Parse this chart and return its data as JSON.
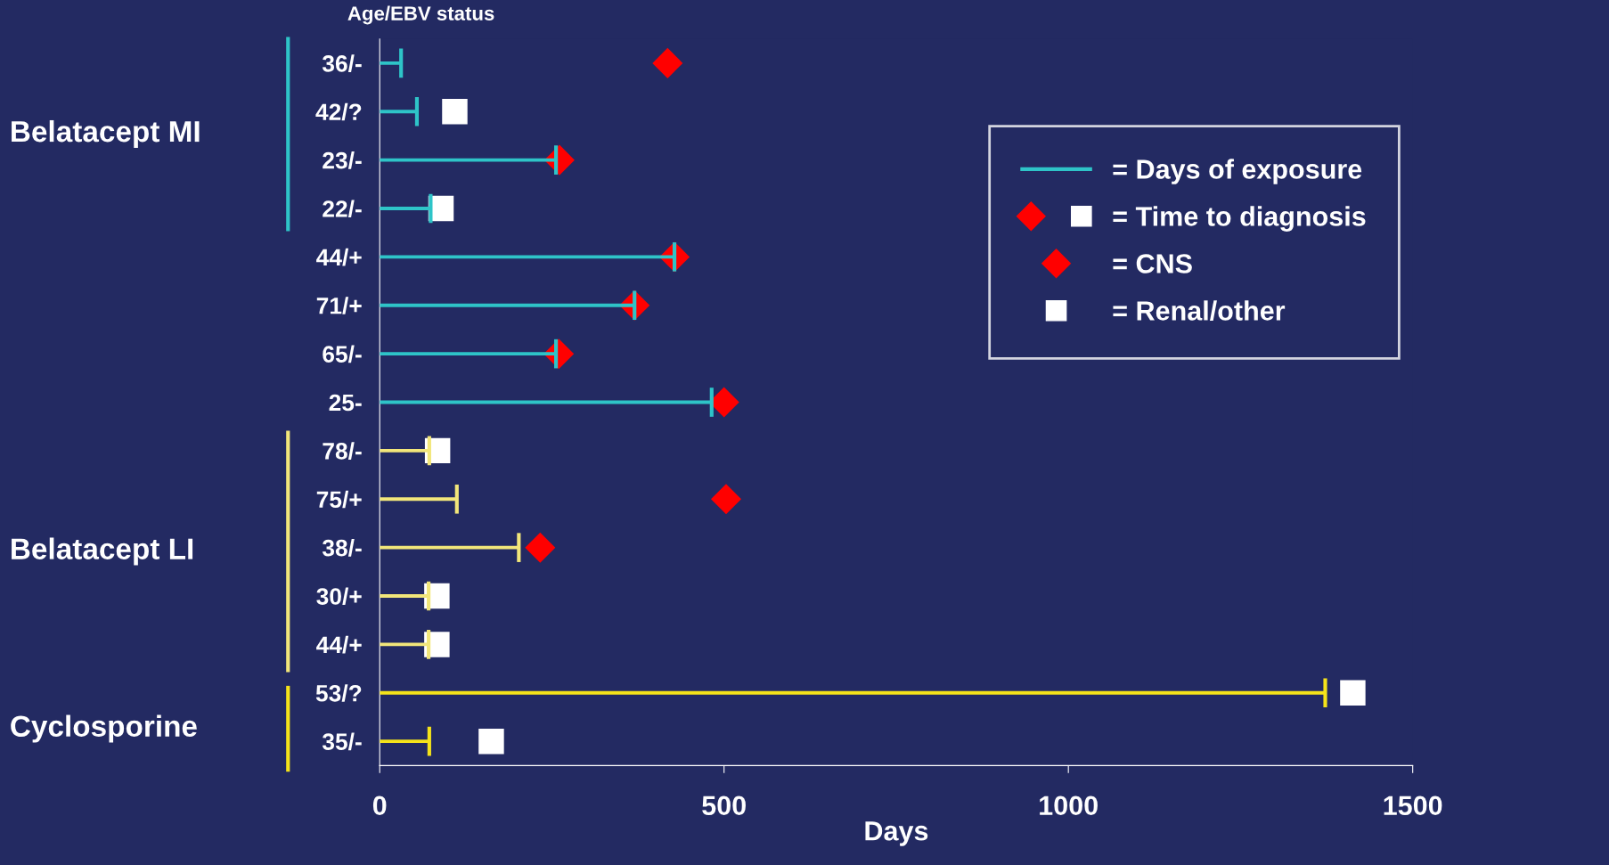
{
  "chart_data": {
    "type": "bar",
    "orientation": "horizontal",
    "xlabel": "Days",
    "ylabel": "Age/EBV status",
    "categories": [
      "36/-",
      "42/?",
      "23/-",
      "22/-",
      "44/+",
      "71/+",
      "65/-",
      "25-",
      "78/-",
      "75/+",
      "38/-",
      "30/+",
      "44/+",
      "53/?",
      "35/-"
    ],
    "series": [
      {
        "name": "= Days of exposure",
        "color": "#2ec4c8",
        "colors": [
          "#2ec4c8",
          "#2ec4c8",
          "#2ec4c8",
          "#2ec4c8",
          "#2ec4c8",
          "#2ec4c8",
          "#2ec4c8",
          "#2ec4c8",
          "#f2e67a",
          "#f2e67a",
          "#f2e67a",
          "#f2e67a",
          "#f2e67a",
          "#f5e31a",
          "#f5e31a"
        ],
        "values": [
          31,
          54,
          256,
          74,
          428,
          370,
          256,
          482,
          72,
          112,
          202,
          71,
          71,
          1373,
          72
        ]
      },
      {
        "name": "= CNS",
        "type": "scatter",
        "marker": "diamond",
        "color": "#ff0000",
        "values": [
          418,
          null,
          261,
          null,
          428,
          370,
          260,
          500,
          null,
          503,
          233,
          null,
          null,
          null,
          null
        ]
      },
      {
        "name": "= Renal/other",
        "type": "scatter",
        "marker": "square",
        "color": "#ffffff",
        "values": [
          null,
          109,
          null,
          89,
          null,
          null,
          null,
          null,
          84,
          null,
          null,
          83,
          83,
          1413,
          162
        ]
      }
    ],
    "annotations": [
      "= Time to diagnosis",
      "Belatacept MI",
      "Belatacept LI",
      "Cyclosporine"
    ],
    "xlim": [
      0,
      1500
    ],
    "xticks": [
      0,
      500,
      1000,
      1500
    ],
    "legend": "right",
    "grid": false
  }
}
